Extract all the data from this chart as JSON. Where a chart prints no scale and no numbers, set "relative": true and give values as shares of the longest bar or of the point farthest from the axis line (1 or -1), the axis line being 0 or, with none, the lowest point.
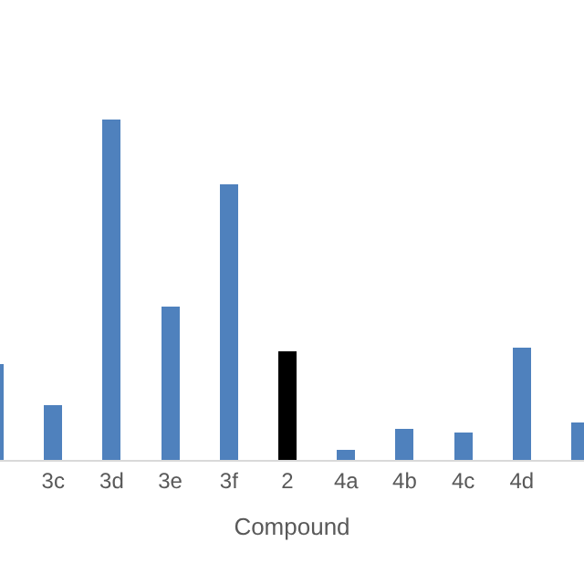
{
  "chart_data": {
    "type": "bar",
    "xlabel": "Compound",
    "relative": true,
    "categories": [
      null,
      "3c",
      "3d",
      "3e",
      "3f",
      "2",
      "4a",
      "4b",
      "4c",
      "4d",
      null
    ],
    "values": [
      0.28,
      0.16,
      1,
      0.45,
      0.81,
      0.32,
      0.03,
      0.09,
      0.08,
      0.33,
      0.11
    ],
    "colors": [
      "#4f81bd",
      "#4f81bd",
      "#4f81bd",
      "#4f81bd",
      "#4f81bd",
      "#000000",
      "#4f81bd",
      "#4f81bd",
      "#4f81bd",
      "#4f81bd",
      "#4f81bd"
    ],
    "grid": false,
    "legend": false
  }
}
